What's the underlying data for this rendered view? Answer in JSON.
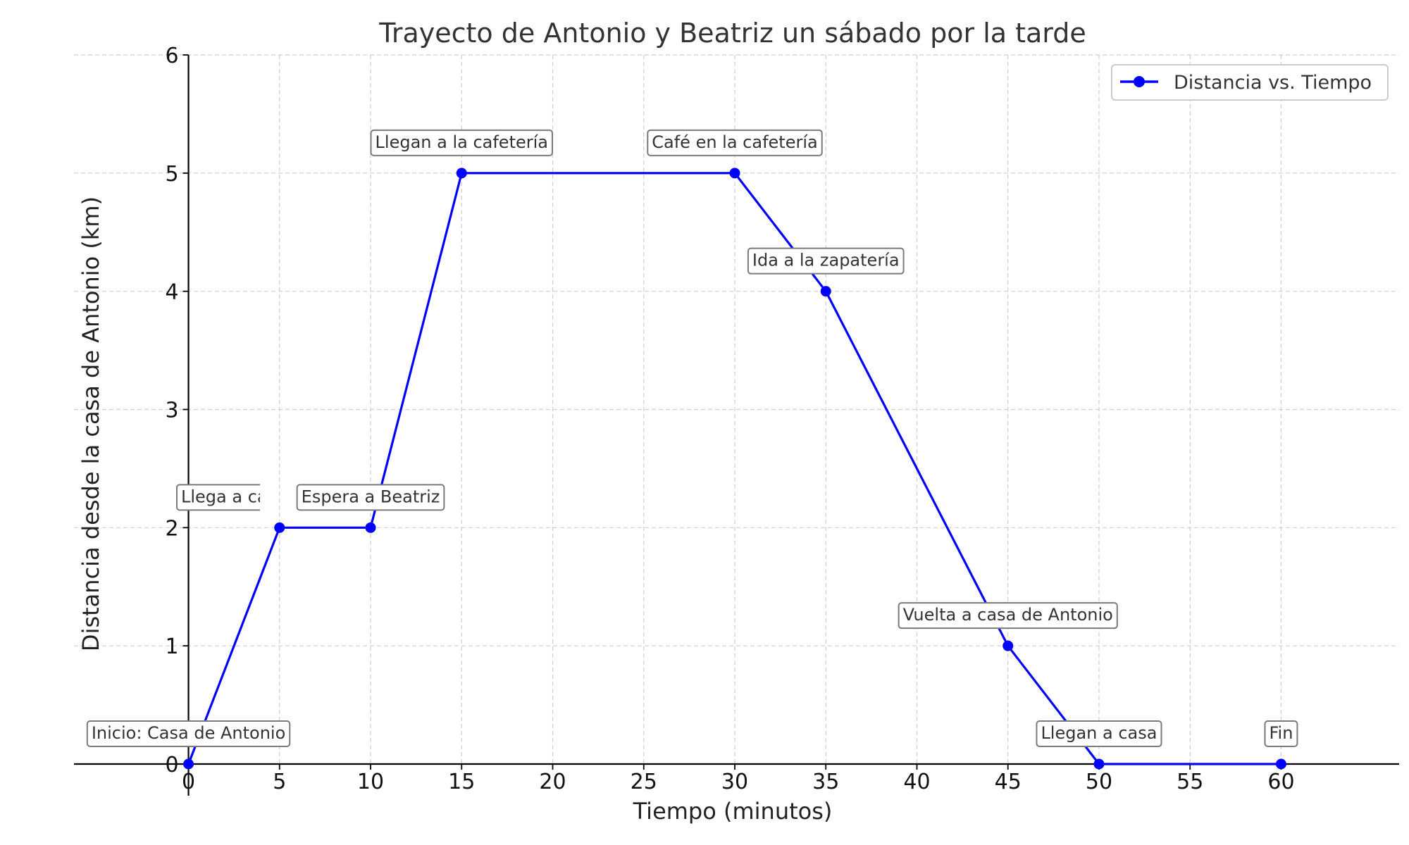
{
  "chart_data": {
    "type": "line",
    "title": "Trayecto de Antonio y Beatriz un sábado por la tarde",
    "xlabel": "Tiempo (minutos)",
    "ylabel": "Distancia desde la casa de Antonio (km)",
    "xlim": [
      -3,
      63
    ],
    "ylim": [
      0,
      6
    ],
    "xticks": [
      0,
      5,
      10,
      15,
      20,
      25,
      30,
      35,
      40,
      45,
      50,
      55,
      60
    ],
    "yticks": [
      0,
      1,
      2,
      3,
      4,
      5,
      6
    ],
    "grid": true,
    "legend": {
      "position": "top-right",
      "label": "Distancia vs. Tiempo"
    },
    "series": [
      {
        "name": "Distancia vs. Tiempo",
        "color": "#0000ff",
        "x": [
          0,
          5,
          10,
          15,
          30,
          35,
          45,
          50,
          60
        ],
        "y": [
          0,
          2,
          2,
          5,
          5,
          4,
          1,
          0,
          0
        ]
      }
    ],
    "annotations": [
      {
        "x": 0,
        "y": 0,
        "text": "Inicio: Casa de Antonio"
      },
      {
        "x": 5,
        "y": 2,
        "text": "Llega a casa de Beatriz"
      },
      {
        "x": 10,
        "y": 2,
        "text": "Espera a Beatriz"
      },
      {
        "x": 15,
        "y": 5,
        "text": "Llegan a la cafetería"
      },
      {
        "x": 30,
        "y": 5,
        "text": "Café en la cafetería"
      },
      {
        "x": 35,
        "y": 4,
        "text": "Ida a la zapatería"
      },
      {
        "x": 45,
        "y": 1,
        "text": "Vuelta a casa de Antonio"
      },
      {
        "x": 50,
        "y": 0,
        "text": "Llegan a casa"
      },
      {
        "x": 60,
        "y": 0,
        "text": "Fin"
      }
    ]
  }
}
